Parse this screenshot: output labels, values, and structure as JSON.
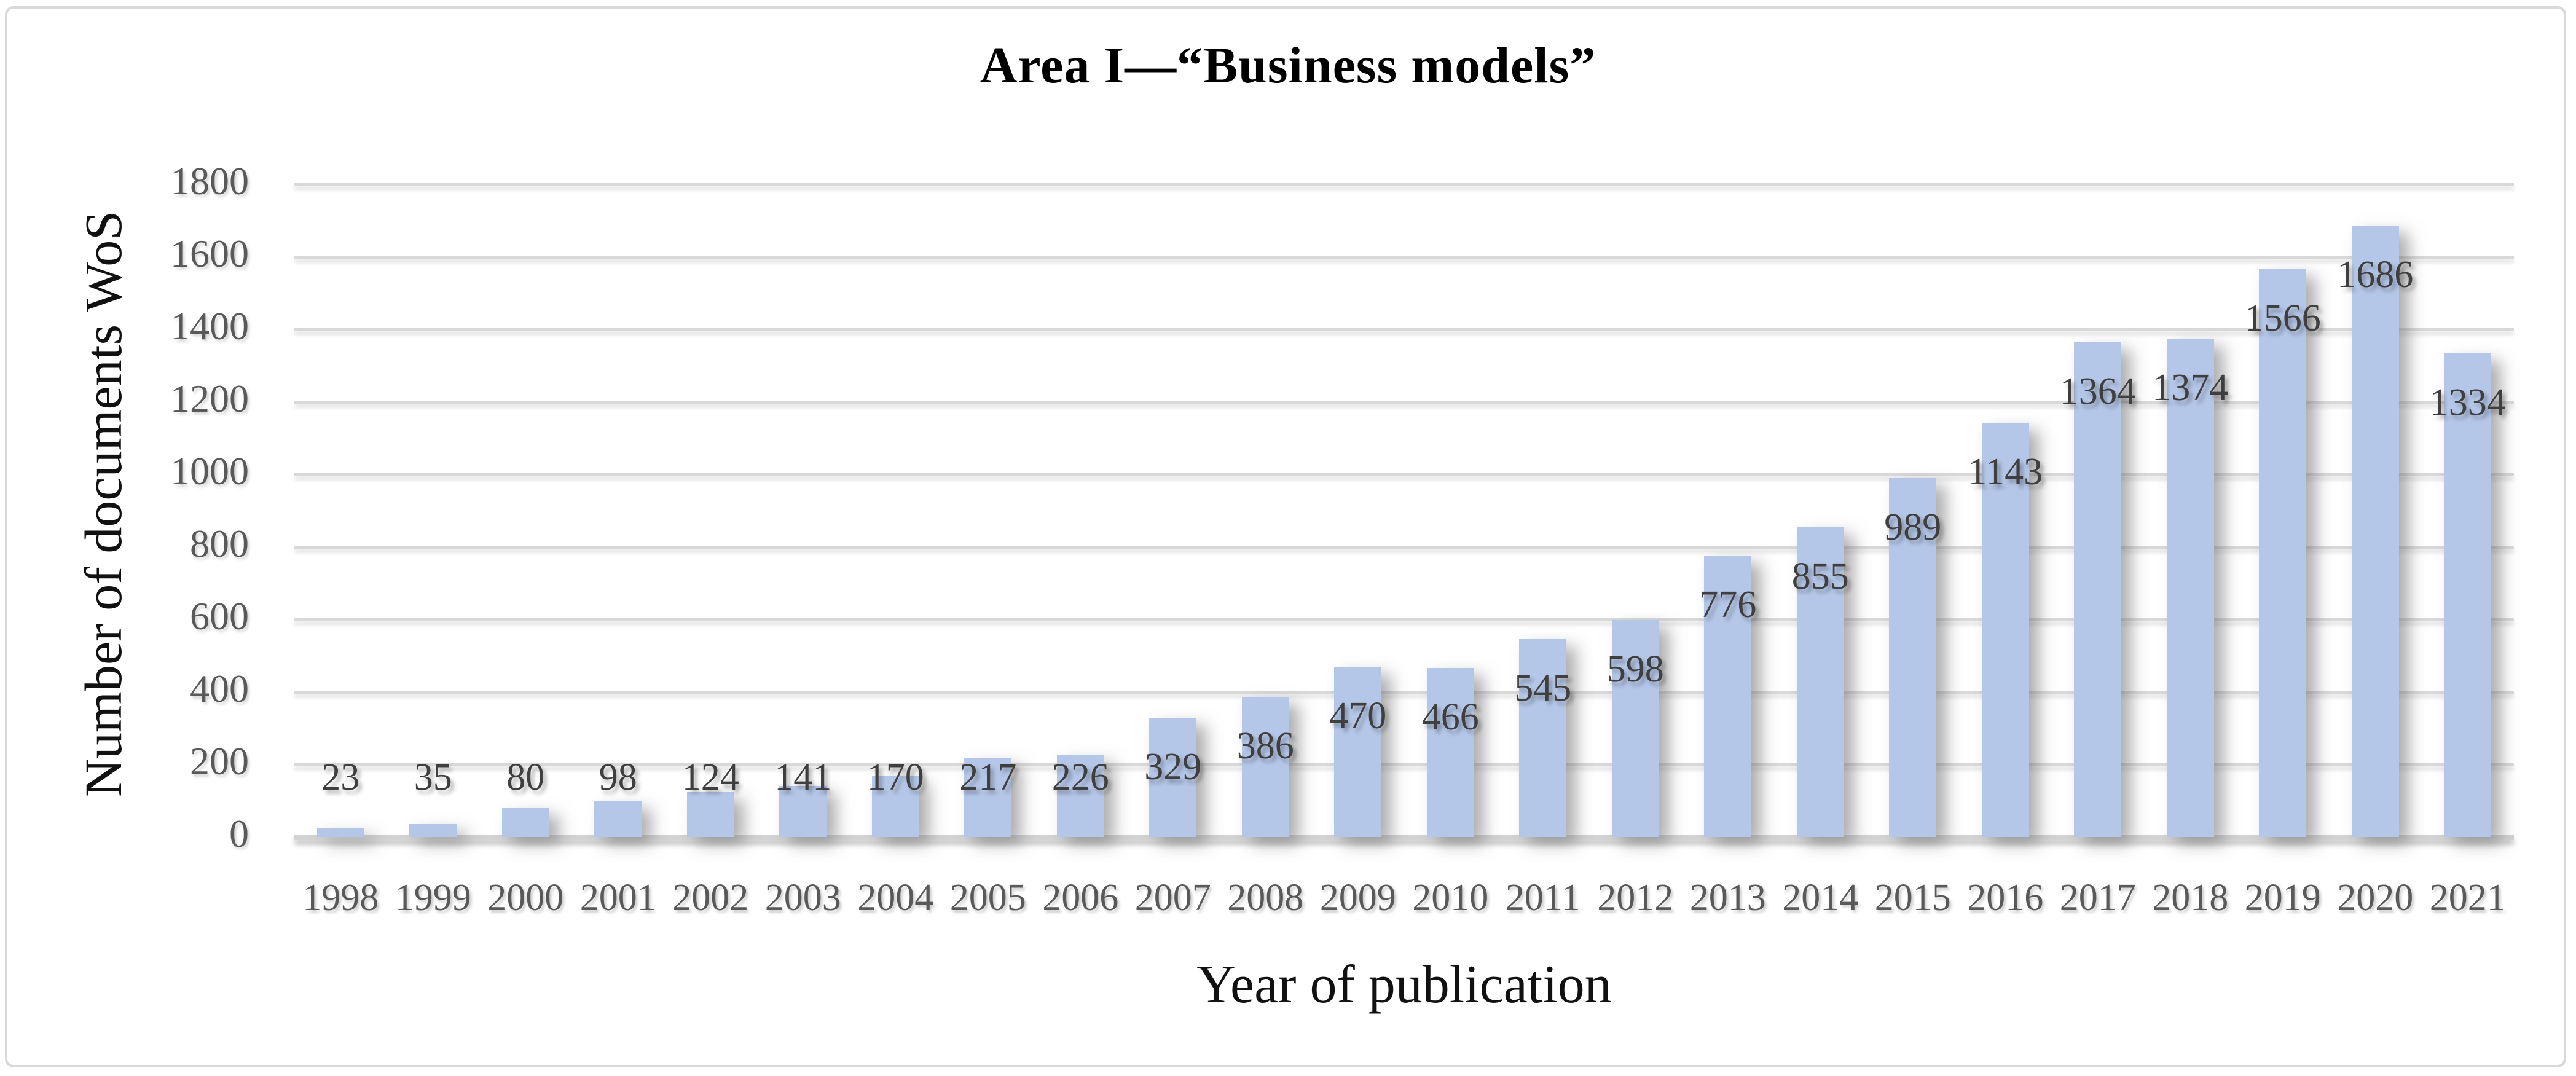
{
  "figure": {
    "title": "Area I—“Business models”"
  },
  "chart_data": {
    "type": "bar",
    "title": "Area I—“Business models”",
    "xlabel": "Year of publication",
    "ylabel": "Number of documents WoS",
    "categories": [
      "1998",
      "1999",
      "2000",
      "2001",
      "2002",
      "2003",
      "2004",
      "2005",
      "2006",
      "2007",
      "2008",
      "2009",
      "2010",
      "2011",
      "2012",
      "2013",
      "2014",
      "2015",
      "2016",
      "2017",
      "2018",
      "2019",
      "2020",
      "2021"
    ],
    "values": [
      23,
      35,
      80,
      98,
      124,
      141,
      170,
      217,
      226,
      329,
      386,
      470,
      466,
      545,
      598,
      776,
      855,
      989,
      1143,
      1364,
      1374,
      1566,
      1686,
      1334
    ],
    "ylim": [
      0,
      1800
    ],
    "ytick_step": 200,
    "yticks": [
      0,
      200,
      400,
      600,
      800,
      1000,
      1200,
      1400,
      1600,
      1800
    ],
    "grid": true,
    "legend": "none",
    "colors": {
      "bar_fill": "#b5c7e8",
      "gridline": "#d9d9d9",
      "axis_line": "#d3d3d3",
      "tick_label": "#595959",
      "data_label": "#3f3f3f",
      "title": "#000000",
      "axis_title": "#111111",
      "figure_border": "#d9d9d9",
      "background": "#ffffff"
    }
  }
}
